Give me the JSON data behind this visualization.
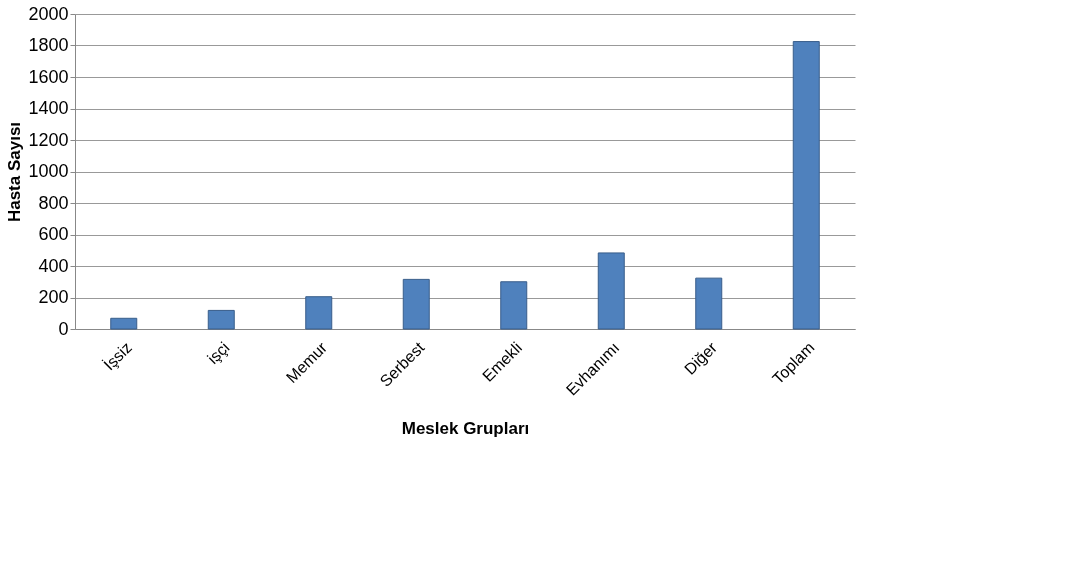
{
  "chart_data": {
    "type": "bar",
    "xlabel": "Meslek Grupları",
    "ylabel": "Hasta Sayısı",
    "categories": [
      "İşsiz",
      "işçi",
      "Memur",
      "Serbest",
      "Emekli",
      "Evhanımı",
      "Diğer",
      "Toplam"
    ],
    "values": [
      68,
      118,
      205,
      315,
      300,
      483,
      323,
      1825
    ],
    "color": "#4f81bd",
    "ylim": [
      0,
      2000
    ],
    "yticks": [
      0,
      200,
      400,
      600,
      800,
      1000,
      1200,
      1400,
      1600,
      1800,
      2000
    ],
    "grid": "y"
  }
}
